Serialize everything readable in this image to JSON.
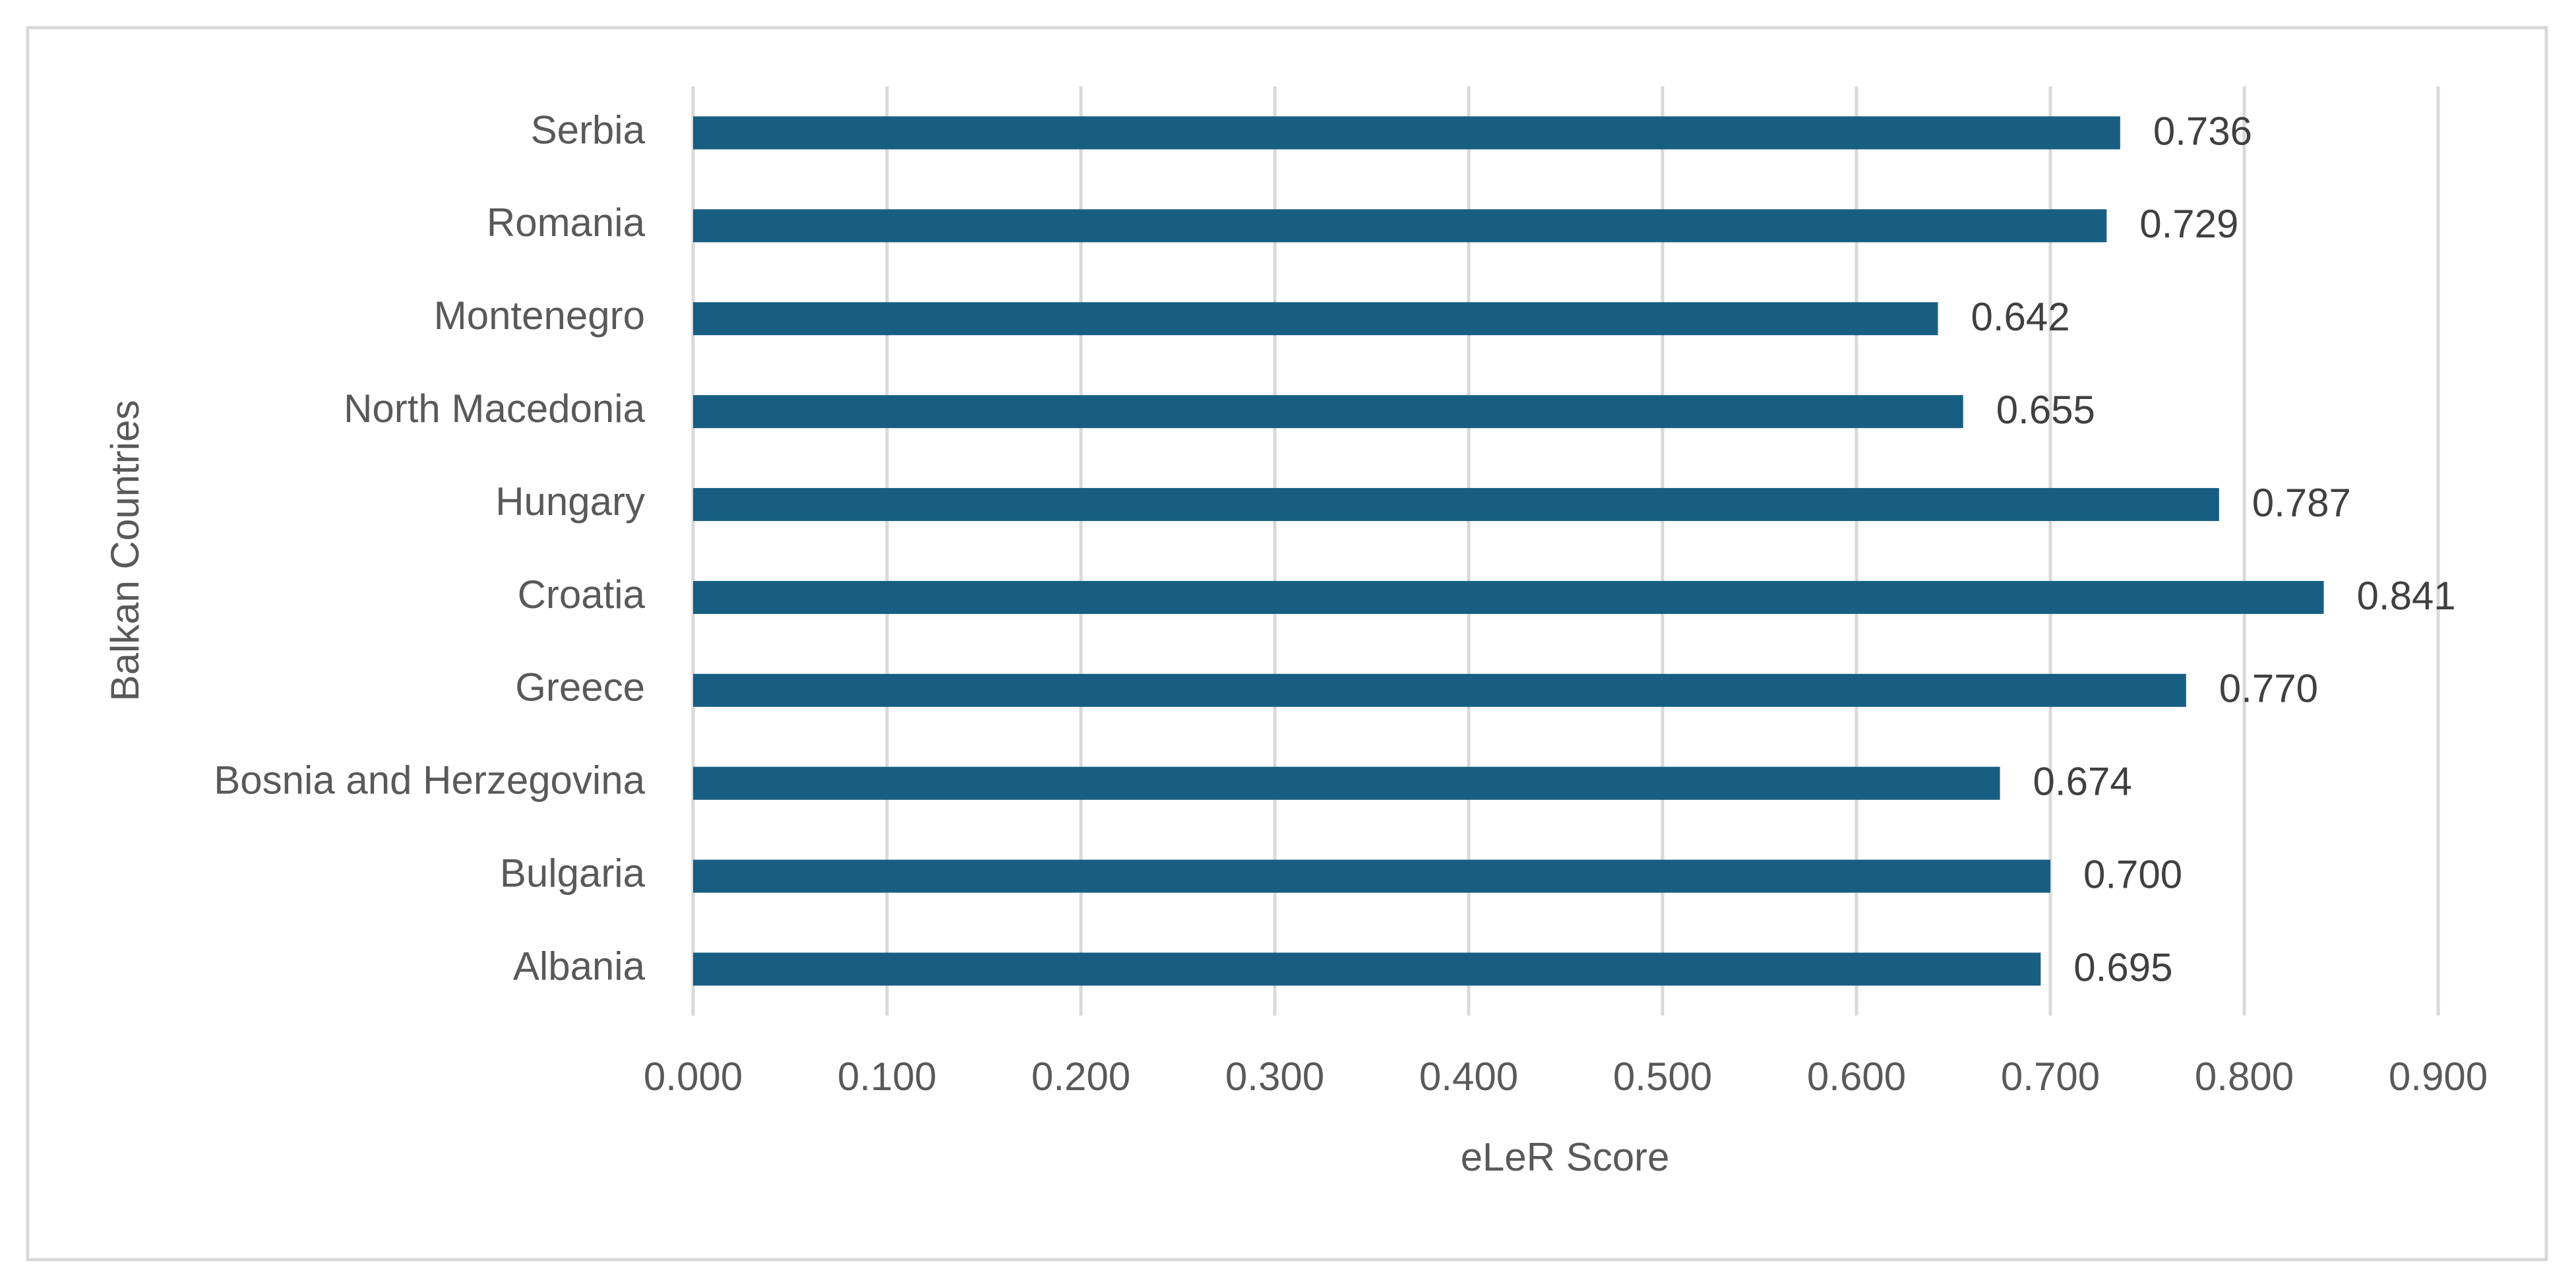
{
  "chart_data": {
    "type": "bar",
    "orientation": "horizontal",
    "x_label": "eLeR Score",
    "y_label": "Balkan Countries",
    "categories": [
      "Serbia",
      "Romania",
      "Montenegro",
      "North Macedonia",
      "Hungary",
      "Croatia",
      "Greece",
      "Bosnia and Herzegovina",
      "Bulgaria",
      "Albania"
    ],
    "values": [
      0.736,
      0.729,
      0.642,
      0.655,
      0.787,
      0.841,
      0.77,
      0.674,
      0.7,
      0.695
    ],
    "value_labels": [
      "0.736",
      "0.729",
      "0.642",
      "0.655",
      "0.787",
      "0.841",
      "0.770",
      "0.674",
      "0.700",
      "0.695"
    ],
    "color": "#175e82",
    "xlim": [
      0,
      0.9
    ],
    "xticks": [
      {
        "value": 0,
        "label": "0.000"
      },
      {
        "value": 0.1,
        "label": "0.100"
      },
      {
        "value": 0.2,
        "label": "0.200"
      },
      {
        "value": 0.3,
        "label": "0.300"
      },
      {
        "value": 0.4,
        "label": "0.400"
      },
      {
        "value": 0.5,
        "label": "0.500"
      },
      {
        "value": 0.6,
        "label": "0.600"
      },
      {
        "value": 0.7,
        "label": "0.700"
      },
      {
        "value": 0.8,
        "label": "0.800"
      },
      {
        "value": 0.9,
        "label": "0.900"
      }
    ],
    "grid": true
  }
}
